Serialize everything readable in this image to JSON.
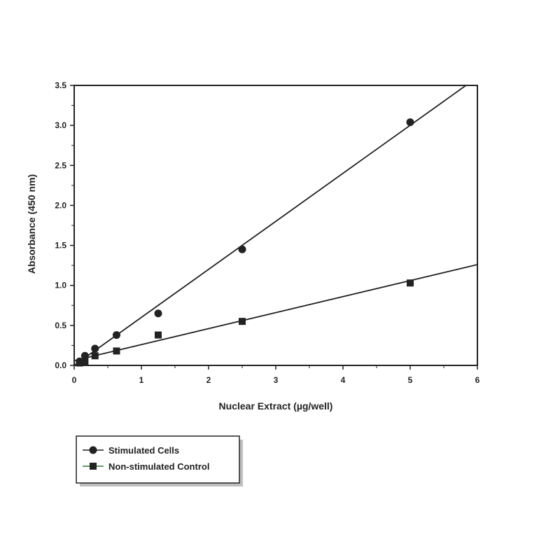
{
  "chart_data": {
    "type": "scatter",
    "xlabel": "Nuclear Extract (µg/well)",
    "ylabel": "Absorbance (450 nm)",
    "xlim": [
      0,
      6
    ],
    "ylim": [
      0,
      3.5
    ],
    "x_ticks": [
      0,
      1,
      2,
      3,
      4,
      5,
      6
    ],
    "x_tick_labels": [
      "0",
      "1",
      "2",
      "3",
      "4",
      "5",
      "6"
    ],
    "y_ticks": [
      0,
      0.5,
      1.0,
      1.5,
      2.0,
      2.5,
      3.0,
      3.5
    ],
    "y_tick_labels": [
      "0.0",
      "0.5",
      "1.0",
      "1.5",
      "2.0",
      "2.5",
      "3.0",
      "3.5"
    ],
    "grid": false,
    "legend_position": "bottom-left",
    "series": [
      {
        "name": "Stimulated Cells",
        "marker": "circle",
        "color": "#222222",
        "points": [
          [
            0.08,
            0.05
          ],
          [
            0.16,
            0.12
          ],
          [
            0.31,
            0.21
          ],
          [
            0.63,
            0.38
          ],
          [
            1.25,
            0.65
          ],
          [
            2.5,
            1.45
          ],
          [
            5.0,
            3.04
          ]
        ],
        "fit_line": [
          [
            0.0,
            0.0
          ],
          [
            5.83,
            3.5
          ]
        ]
      },
      {
        "name": "Non-stimulated Control",
        "marker": "square",
        "color": "#222222",
        "line_color": "#2e7d32",
        "points": [
          [
            0.08,
            0.03
          ],
          [
            0.16,
            0.05
          ],
          [
            0.31,
            0.12
          ],
          [
            0.63,
            0.18
          ],
          [
            1.25,
            0.38
          ],
          [
            2.5,
            0.55
          ],
          [
            5.0,
            1.03
          ]
        ],
        "fit_line": [
          [
            0.0,
            0.06
          ],
          [
            6.0,
            1.26
          ]
        ]
      }
    ]
  }
}
